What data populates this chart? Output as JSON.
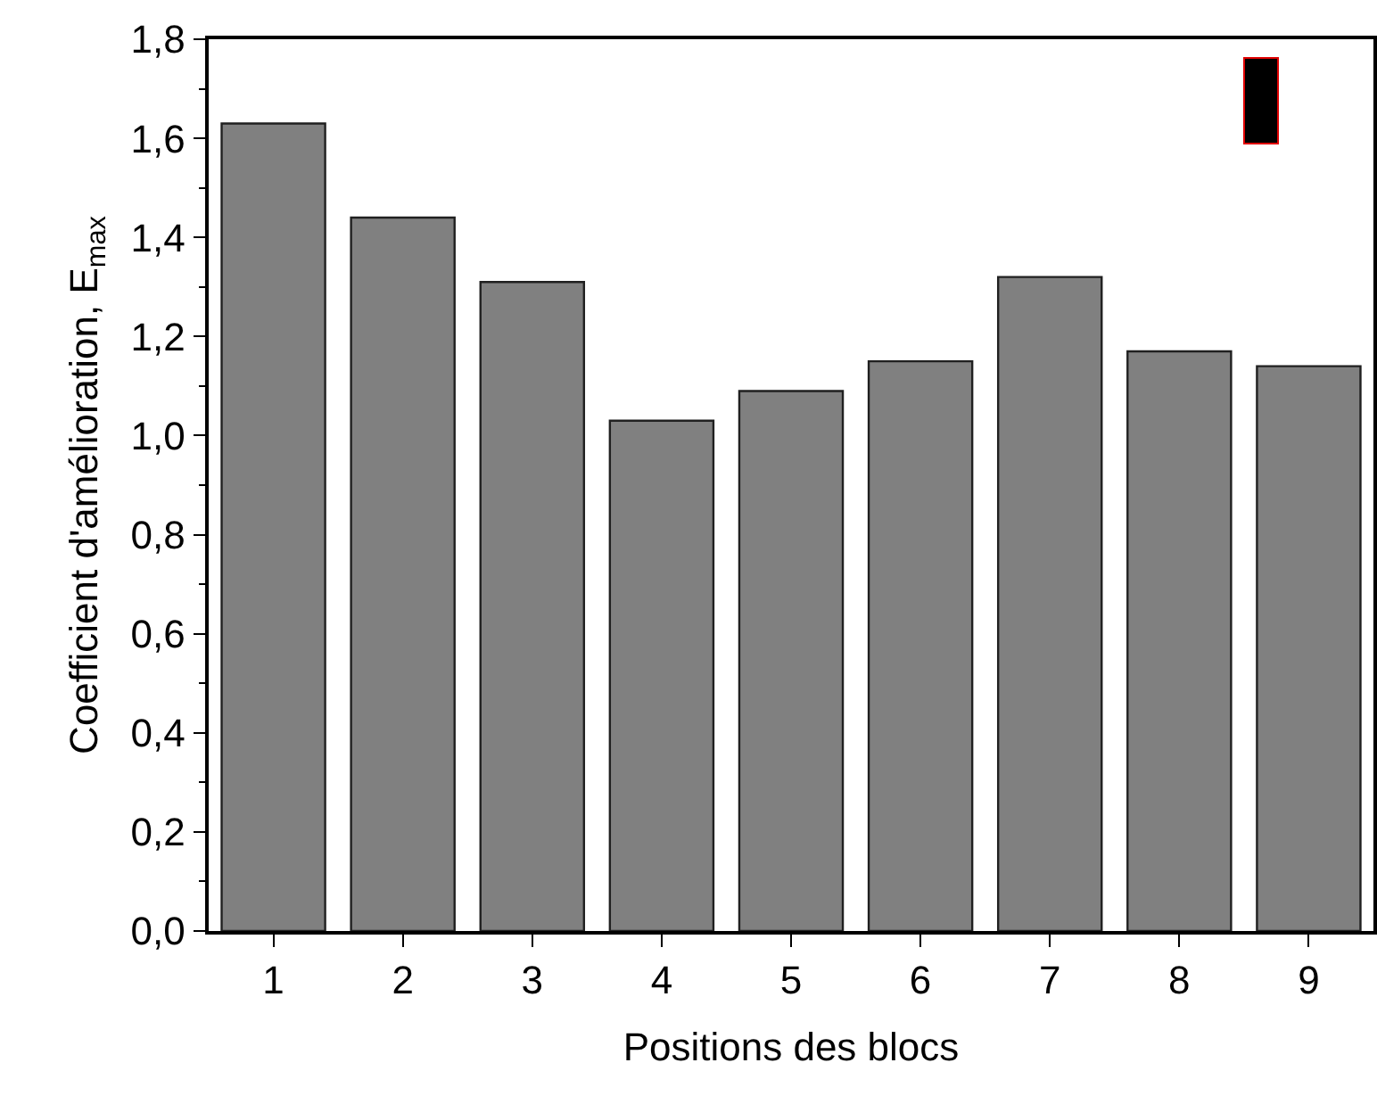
{
  "chart_data": {
    "type": "bar",
    "xlabel": "Positions des blocs",
    "ylabel": "Coefficient d'amélioration, E$_{max}$",
    "categories": [
      "1",
      "2",
      "3",
      "4",
      "5",
      "6",
      "7",
      "8",
      "9"
    ],
    "values": [
      1.63,
      1.44,
      1.31,
      1.03,
      1.09,
      1.15,
      1.32,
      1.17,
      1.14
    ],
    "color": "#808080",
    "ylim": [
      0,
      1.8
    ],
    "yticks": [
      {
        "value": 0,
        "label": "0,0"
      },
      {
        "value": 0.2,
        "label": "0,2"
      },
      {
        "value": 0.4,
        "label": "0,4"
      },
      {
        "value": 0.6,
        "label": "0,6"
      },
      {
        "value": 0.8,
        "label": "0,8"
      },
      {
        "value": 1,
        "label": "1,0"
      },
      {
        "value": 1.2,
        "label": "1,2"
      },
      {
        "value": 1.4,
        "label": "1,4"
      },
      {
        "value": 1.6,
        "label": "1,6"
      },
      {
        "value": 1.8,
        "label": "1,8"
      }
    ],
    "grid": false
  }
}
